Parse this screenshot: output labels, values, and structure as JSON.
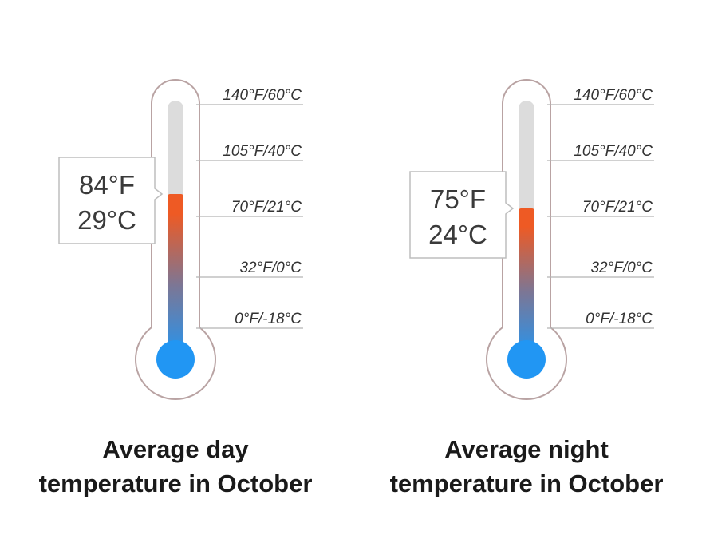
{
  "chart_data": [
    {
      "type": "thermometer",
      "title": [
        "Average day",
        "temperature in October"
      ],
      "value_f": 84,
      "value_c": 29,
      "readout_f": "84°F",
      "readout_c": "29°C",
      "scale": [
        {
          "f": 140,
          "label": "140°F/60°C"
        },
        {
          "f": 105,
          "label": "105°F/40°C"
        },
        {
          "f": 70,
          "label": "70°F/21°C"
        },
        {
          "f": 32,
          "label": "32°F/0°C"
        },
        {
          "f": 0,
          "label": "0°F/-18°C"
        }
      ]
    },
    {
      "type": "thermometer",
      "title": [
        "Average night",
        "temperature in October"
      ],
      "value_f": 75,
      "value_c": 24,
      "readout_f": "75°F",
      "readout_c": "24°C",
      "scale": [
        {
          "f": 140,
          "label": "140°F/60°C"
        },
        {
          "f": 105,
          "label": "105°F/40°C"
        },
        {
          "f": 70,
          "label": "70°F/21°C"
        },
        {
          "f": 32,
          "label": "32°F/0°C"
        },
        {
          "f": 0,
          "label": "0°F/-18°C"
        }
      ]
    }
  ],
  "colors": {
    "outline": "#b9a3a3",
    "track": "#dcdcdc",
    "hot": "#ee5a24",
    "mid": "#7d7694",
    "cold": "#2196f3",
    "tick": "#b5b5b5",
    "label": "#333333",
    "readout_border": "#bdbdbd",
    "readout_text": "#3a3a3a"
  }
}
